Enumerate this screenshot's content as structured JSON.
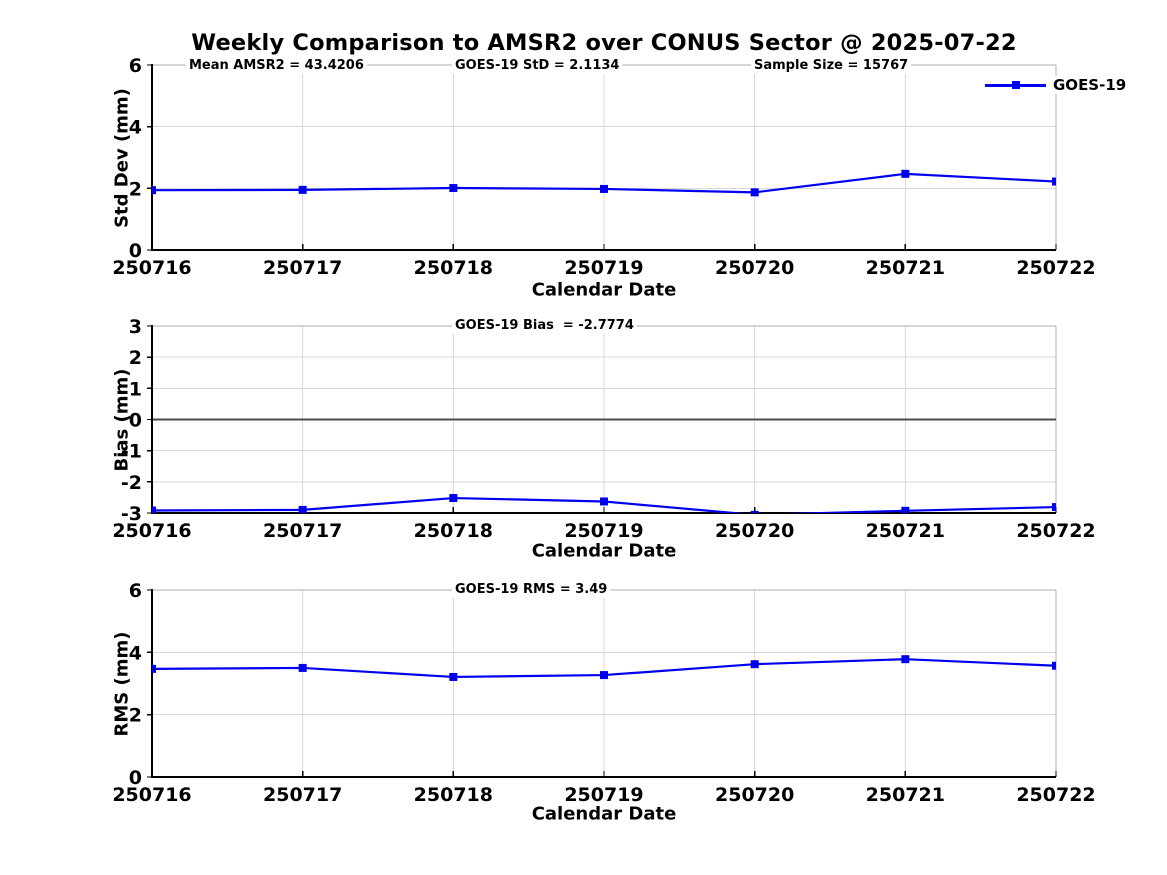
{
  "title": "Weekly Comparison to AMSR2 over CONUS Sector @ 2025-07-22",
  "colors": {
    "line": "#0000F0",
    "grid": "#d9d9d9",
    "frame": "#b0b0b0",
    "axis": "#000000",
    "zero_line": "#4a4a4a",
    "text": "#000000",
    "background": "#ffffff"
  },
  "chart_data": [
    {
      "id": "std-dev",
      "type": "line",
      "ylabel": "Std Dev (mm)",
      "xlabel": "Calendar Date",
      "categories": [
        "250716",
        "250717",
        "250718",
        "250719",
        "250720",
        "250721",
        "250722"
      ],
      "series": [
        {
          "name": "GOES-19",
          "values": [
            1.94,
            1.95,
            2.01,
            1.98,
            1.87,
            2.47,
            2.22
          ]
        }
      ],
      "ylim": [
        0,
        6
      ],
      "yticks": [
        0,
        2,
        4,
        6
      ],
      "grid": true,
      "marker": "square",
      "annotations": [
        {
          "text": "Mean AMSR2 = 43.4206"
        },
        {
          "text": "GOES-19 StD = 2.1134"
        },
        {
          "text": "Sample Size = 15767"
        }
      ],
      "legend": {
        "label": "GOES-19",
        "position": "top-right",
        "marker": "square"
      }
    },
    {
      "id": "bias",
      "type": "line",
      "ylabel": "Bias (mm)",
      "xlabel": "Calendar Date",
      "categories": [
        "250716",
        "250717",
        "250718",
        "250719",
        "250720",
        "250721",
        "250722"
      ],
      "series": [
        {
          "name": "GOES-19",
          "values": [
            -2.92,
            -2.9,
            -2.52,
            -2.63,
            -3.06,
            -2.93,
            -2.81
          ]
        }
      ],
      "ylim": [
        -3,
        3
      ],
      "yticks": [
        -3,
        -2,
        -1,
        0,
        1,
        2,
        3
      ],
      "grid": true,
      "zero_line": true,
      "marker": "square",
      "annotations": [
        {
          "text": "GOES-19 Bias  = -2.7774"
        }
      ]
    },
    {
      "id": "rms",
      "type": "line",
      "ylabel": "RMS (mm)",
      "xlabel": "Calendar Date",
      "categories": [
        "250716",
        "250717",
        "250718",
        "250719",
        "250720",
        "250721",
        "250722"
      ],
      "series": [
        {
          "name": "GOES-19",
          "values": [
            3.47,
            3.5,
            3.21,
            3.27,
            3.62,
            3.78,
            3.57
          ]
        }
      ],
      "ylim": [
        0,
        6
      ],
      "yticks": [
        0,
        2,
        4,
        6
      ],
      "grid": true,
      "marker": "square",
      "annotations": [
        {
          "text": "GOES-19 RMS = 3.49"
        }
      ]
    }
  ]
}
